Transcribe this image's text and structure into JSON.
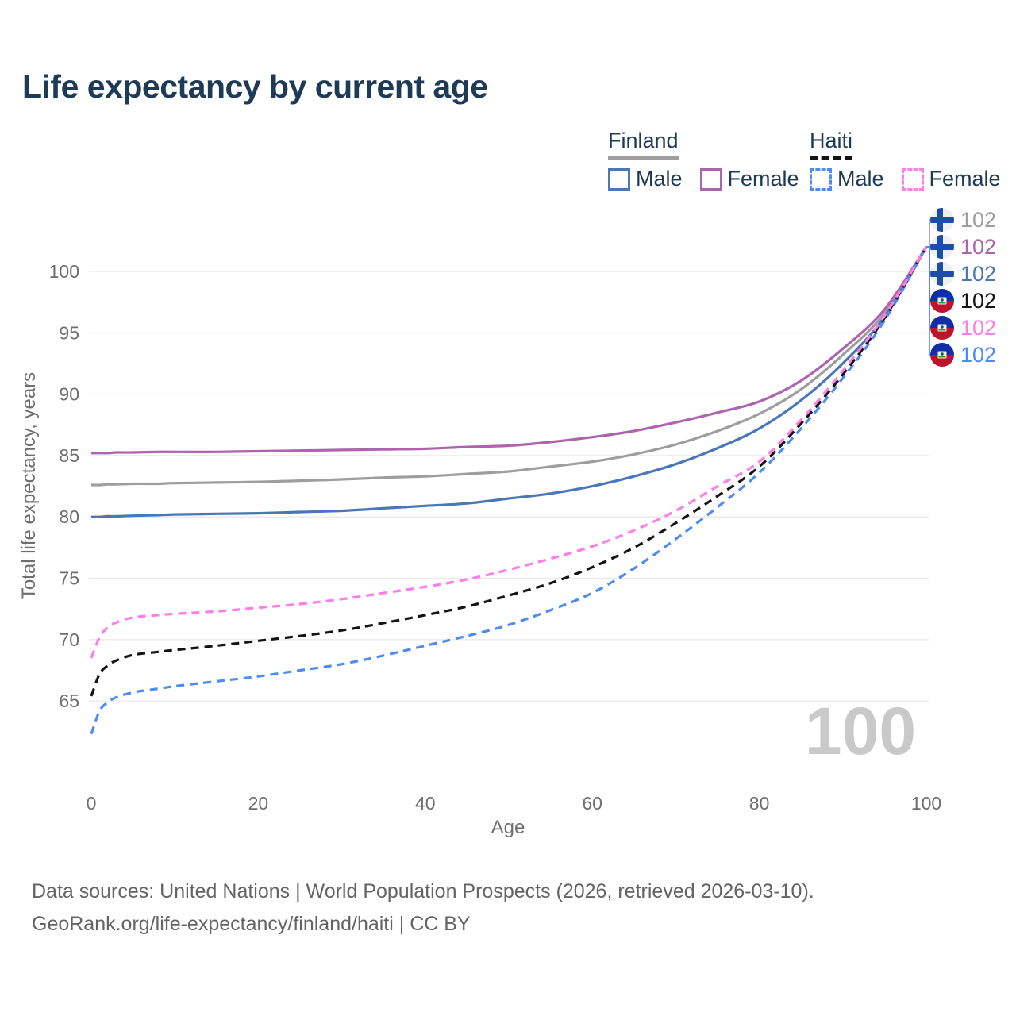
{
  "title": "Life expectancy by current age",
  "legend": {
    "groups": [
      {
        "country": "Finland",
        "line_style": "solid",
        "header_rule_color": "#9e9e9e",
        "items": [
          {
            "label": "Male",
            "color": "#4a77b9"
          },
          {
            "label": "Female",
            "color": "#ad63ad"
          }
        ]
      },
      {
        "country": "Haiti",
        "line_style": "dashed",
        "header_rule_color": "#141414",
        "items": [
          {
            "label": "Male",
            "color": "#4d8bf5"
          },
          {
            "label": "Female",
            "color": "#ff7ce9"
          }
        ]
      }
    ]
  },
  "watermark": "100",
  "end_labels": [
    {
      "flag": "finland",
      "series": "Finland Total",
      "value": "102",
      "color": "#9e9e9e"
    },
    {
      "flag": "finland",
      "series": "Finland Female",
      "value": "102",
      "color": "#ad63ad"
    },
    {
      "flag": "finland",
      "series": "Finland Male",
      "value": "102",
      "color": "#4a77b9"
    },
    {
      "flag": "haiti",
      "series": "Haiti Total",
      "value": "102",
      "color": "#141414"
    },
    {
      "flag": "haiti",
      "series": "Haiti Female",
      "value": "102",
      "color": "#ff7ce9"
    },
    {
      "flag": "haiti",
      "series": "Haiti Male",
      "value": "102",
      "color": "#4d8bf5"
    }
  ],
  "chart_data": {
    "type": "line",
    "title": "Life expectancy by current age",
    "xlabel": "Age",
    "ylabel": "Total life expectancy, years",
    "xticks": [
      0,
      20,
      40,
      60,
      80,
      100
    ],
    "yticks": [
      65,
      70,
      75,
      80,
      85,
      90,
      95,
      100
    ],
    "xlim": [
      0,
      100
    ],
    "ylim": [
      62,
      103
    ],
    "grid": "horizontal",
    "x": [
      0,
      1,
      2,
      3,
      5,
      8,
      10,
      15,
      20,
      25,
      30,
      35,
      40,
      45,
      50,
      55,
      60,
      65,
      70,
      75,
      80,
      85,
      90,
      95,
      100
    ],
    "series": [
      {
        "name": "Finland Total",
        "country": "Finland",
        "color": "#9e9e9e",
        "dash": false,
        "values": [
          82.6,
          82.6,
          82.65,
          82.65,
          82.7,
          82.7,
          82.75,
          82.8,
          82.85,
          82.95,
          83.05,
          83.2,
          83.3,
          83.5,
          83.7,
          84.1,
          84.5,
          85.1,
          85.9,
          87.0,
          88.4,
          90.4,
          93.2,
          96.6,
          102
        ]
      },
      {
        "name": "Finland Female",
        "country": "Finland",
        "color": "#ad63ad",
        "dash": false,
        "values": [
          85.2,
          85.2,
          85.2,
          85.25,
          85.25,
          85.3,
          85.3,
          85.3,
          85.35,
          85.4,
          85.45,
          85.5,
          85.55,
          85.7,
          85.8,
          86.1,
          86.5,
          87.0,
          87.7,
          88.5,
          89.4,
          91.1,
          93.7,
          96.9,
          102
        ]
      },
      {
        "name": "Finland Male",
        "country": "Finland",
        "color": "#4a77b9",
        "dash": false,
        "values": [
          80.0,
          80.0,
          80.05,
          80.05,
          80.1,
          80.15,
          80.2,
          80.25,
          80.3,
          80.4,
          80.5,
          80.7,
          80.9,
          81.1,
          81.5,
          81.9,
          82.5,
          83.3,
          84.3,
          85.6,
          87.2,
          89.5,
          92.5,
          96.3,
          102
        ]
      },
      {
        "name": "Haiti Total",
        "country": "Haiti",
        "color": "#141414",
        "dash": true,
        "values": [
          65.4,
          67.2,
          67.9,
          68.3,
          68.75,
          69.0,
          69.15,
          69.5,
          69.9,
          70.3,
          70.75,
          71.35,
          72.0,
          72.7,
          73.6,
          74.6,
          75.9,
          77.5,
          79.5,
          81.7,
          84.1,
          87.6,
          91.6,
          96.2,
          102
        ]
      },
      {
        "name": "Haiti Female",
        "country": "Haiti",
        "color": "#ff7ce9",
        "dash": true,
        "values": [
          68.5,
          70.2,
          71.0,
          71.4,
          71.8,
          72.0,
          72.1,
          72.3,
          72.6,
          72.9,
          73.3,
          73.8,
          74.3,
          74.9,
          75.7,
          76.6,
          77.6,
          78.9,
          80.5,
          82.5,
          84.5,
          87.9,
          91.9,
          96.4,
          102
        ]
      },
      {
        "name": "Haiti Male",
        "country": "Haiti",
        "color": "#4d8bf5",
        "dash": true,
        "values": [
          62.3,
          64.2,
          64.9,
          65.3,
          65.7,
          66.0,
          66.2,
          66.6,
          67.0,
          67.5,
          68.0,
          68.7,
          69.5,
          70.3,
          71.2,
          72.4,
          73.8,
          75.8,
          78.2,
          80.8,
          83.6,
          87.2,
          91.3,
          96.0,
          102
        ]
      }
    ],
    "end_value_label": "102"
  },
  "footer": {
    "line1": "Data sources: United Nations | World Population Prospects (2026, retrieved 2026-03-10).",
    "line2": "GeoRank.org/life-expectancy/finland/haiti | CC BY"
  }
}
